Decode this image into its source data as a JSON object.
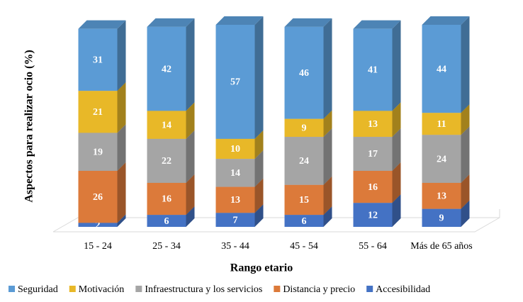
{
  "chart_data": {
    "type": "bar3d_stacked",
    "y_label": "Aspectos para realizar ocio (%)",
    "x_label": "Rango etario",
    "categories": [
      "15 - 24",
      "25 - 34",
      "35 - 44",
      "45 - 54",
      "55 - 64",
      "Más de 65 años"
    ],
    "series": [
      {
        "name": "Seguridad",
        "color": "#5b9bd5",
        "values": [
          31,
          42,
          57,
          46,
          41,
          44
        ]
      },
      {
        "name": "Motivación",
        "color": "#e8b828",
        "values": [
          21,
          14,
          10,
          9,
          13,
          11
        ]
      },
      {
        "name": "Infraestructura y los servicios",
        "color": "#a5a5a5",
        "values": [
          19,
          22,
          14,
          24,
          17,
          24
        ]
      },
      {
        "name": "Distancia y precio",
        "color": "#dc7a3a",
        "values": [
          26,
          16,
          13,
          15,
          16,
          13
        ]
      },
      {
        "name": "Accesibilidad",
        "color": "#4472c4",
        "values": [
          2,
          6,
          7,
          6,
          12,
          9
        ]
      }
    ]
  }
}
